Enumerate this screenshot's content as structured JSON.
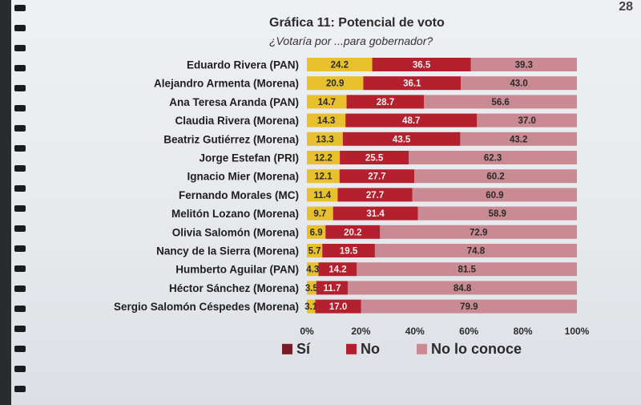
{
  "page_number": "28",
  "chart_data": {
    "type": "bar",
    "stacked": true,
    "orientation": "horizontal",
    "title": "Gráfica 11: Potencial de voto",
    "subtitle": "¿Votaría por ...para gobernador?",
    "categories": [
      "Eduardo Rivera (PAN)",
      "Alejandro Armenta (Morena)",
      "Ana Teresa Aranda (PAN)",
      "Claudia Rivera (Morena)",
      "Beatriz Gutiérrez (Morena)",
      "Jorge Estefan (PRI)",
      "Ignacio Mier  (Morena)",
      "Fernando Morales (MC)",
      "Melitón Lozano (Morena)",
      "Olivia Salomón (Morena)",
      "Nancy de la Sierra (Morena)",
      "Humberto Aguilar (PAN)",
      "Héctor Sánchez (Morena)",
      "Sergio Salomón Céspedes (Morena)"
    ],
    "series": [
      {
        "name": "Sí",
        "color": "#e8c02d",
        "legend_color": "#7a1a26",
        "values": [
          24.2,
          20.9,
          14.7,
          14.3,
          13.3,
          12.2,
          12.1,
          11.4,
          9.7,
          6.9,
          5.7,
          4.3,
          3.5,
          3.1
        ]
      },
      {
        "name": "No",
        "color": "#b5202e",
        "values": [
          36.5,
          36.1,
          28.7,
          48.7,
          43.5,
          25.5,
          27.7,
          27.7,
          31.4,
          20.2,
          19.5,
          14.2,
          11.7,
          17.0
        ]
      },
      {
        "name": "No lo conoce",
        "color": "#c98a94",
        "values": [
          39.3,
          43.0,
          56.6,
          37.0,
          43.2,
          62.3,
          60.2,
          60.9,
          58.9,
          72.9,
          74.8,
          81.5,
          84.8,
          79.9
        ]
      }
    ],
    "xlim": [
      0,
      100
    ],
    "xticks": [
      "0%",
      "20%",
      "40%",
      "60%",
      "80%",
      "100%"
    ],
    "legend_position": "bottom",
    "grid": false
  }
}
